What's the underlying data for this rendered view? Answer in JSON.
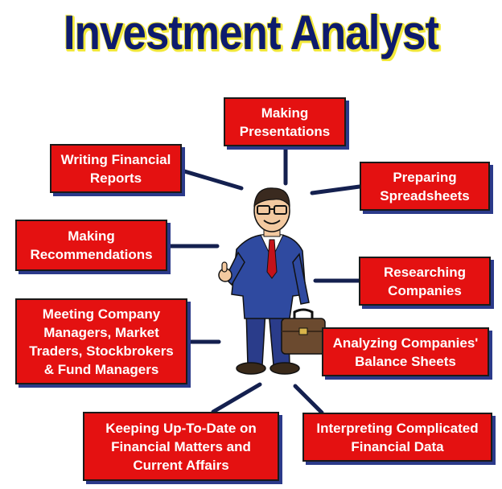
{
  "title": "Investment Analyst",
  "center": "investment analyst",
  "nodes": [
    {
      "id": "presentations",
      "lines": [
        "Making",
        "Presentations"
      ]
    },
    {
      "id": "financial-reports",
      "lines": [
        "Writing Financial",
        "Reports"
      ]
    },
    {
      "id": "spreadsheets",
      "lines": [
        "Preparing",
        "Spreadsheets"
      ]
    },
    {
      "id": "recommendations",
      "lines": [
        "Making",
        "Recommendations"
      ]
    },
    {
      "id": "researching",
      "lines": [
        "Researching",
        "Companies"
      ]
    },
    {
      "id": "meeting",
      "lines": [
        "Meeting Company",
        "Managers, Market",
        "Traders, Stockbrokers",
        "& Fund Managers"
      ]
    },
    {
      "id": "balance-sheets",
      "lines": [
        "Analyzing Companies'",
        "Balance Sheets"
      ]
    },
    {
      "id": "keeping-up",
      "lines": [
        "Keeping Up-To-Date on",
        "Financial Matters and",
        "Current Affairs"
      ]
    },
    {
      "id": "interpreting",
      "lines": [
        "Interpreting Complicated",
        "Financial Data"
      ]
    }
  ],
  "colors": {
    "box": "#e41111",
    "title": "#0d1b6e",
    "title_shadow": "#f2e83a",
    "connector": "#14204f"
  }
}
